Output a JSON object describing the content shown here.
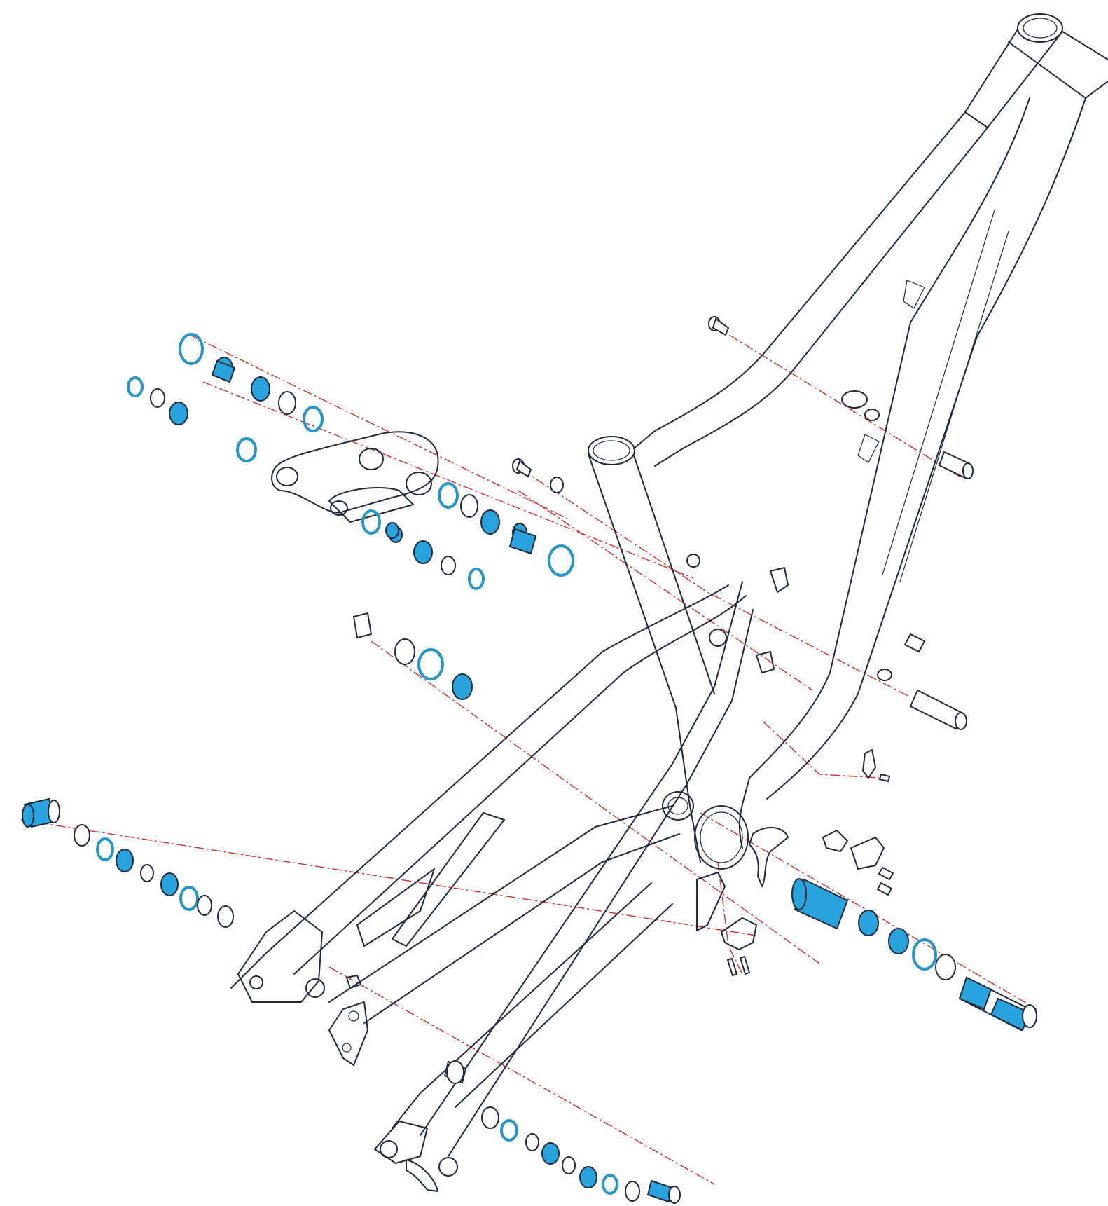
{
  "diagram": {
    "kind": "exploded frame assembly drawing",
    "colors": {
      "outline": "#1e2a3a",
      "bearing_fill": "#29a3dd",
      "oring_stroke": "#2596c9",
      "axis_line": "#d32f2f",
      "background": "#ffffff"
    },
    "components": [
      "front-triangle",
      "seatstay",
      "chainstay",
      "rocker-link",
      "pivot-axles",
      "bearings",
      "o-rings",
      "washers",
      "derailleur-hanger",
      "cable-guides",
      "bolts"
    ]
  }
}
